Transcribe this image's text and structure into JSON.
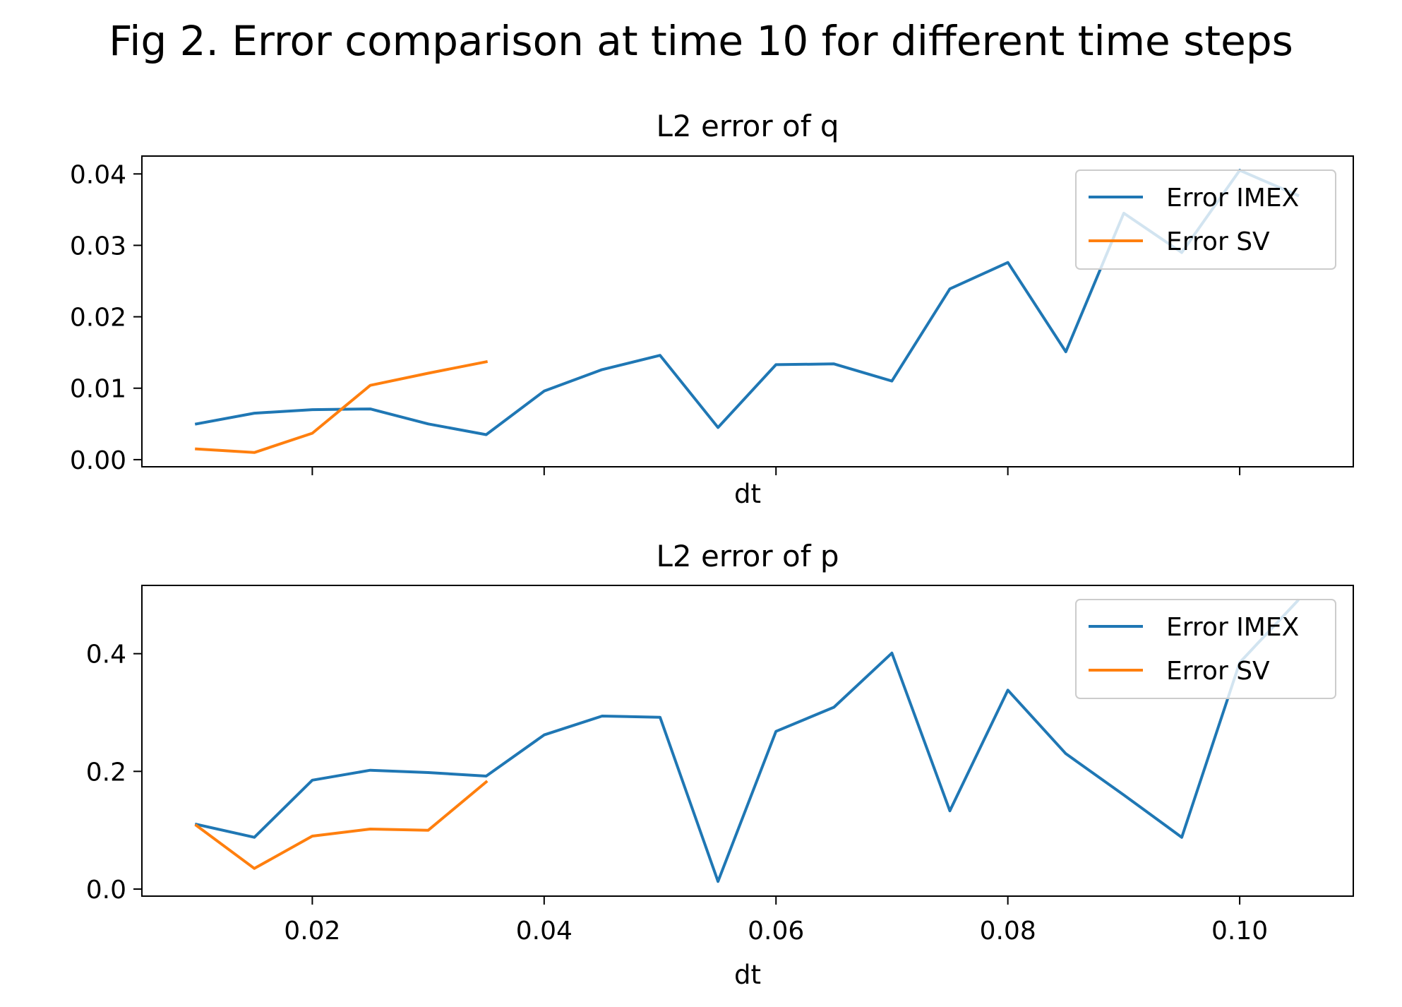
{
  "figure": {
    "title": "Fig 2. Error comparison at time 10 for different time steps"
  },
  "chart_data": [
    {
      "type": "line",
      "title": "L2 error of q",
      "xlabel": "dt",
      "ylabel": "",
      "xlim": [
        0.0053,
        0.1098
      ],
      "ylim": [
        -0.001,
        0.0425
      ],
      "xticks": [
        0.02,
        0.04,
        0.06,
        0.08,
        0.1
      ],
      "xtick_labels_visible": false,
      "yticks": [
        0.0,
        0.01,
        0.02,
        0.03,
        0.04
      ],
      "ytick_labels": [
        "0.00",
        "0.01",
        "0.02",
        "0.03",
        "0.04"
      ],
      "legend": {
        "position": "upper-right"
      },
      "series": [
        {
          "name": "Error IMEX",
          "color": "#1f77b4",
          "x": [
            0.01,
            0.015,
            0.02,
            0.025,
            0.03,
            0.035,
            0.04,
            0.045,
            0.05,
            0.055,
            0.06,
            0.065,
            0.07,
            0.075,
            0.08,
            0.085,
            0.09,
            0.095,
            0.1,
            0.105
          ],
          "y": [
            0.005,
            0.0065,
            0.007,
            0.0071,
            0.005,
            0.0035,
            0.0096,
            0.0126,
            0.0146,
            0.0045,
            0.0133,
            0.0134,
            0.011,
            0.0239,
            0.0276,
            0.0151,
            0.0345,
            0.029,
            0.0405,
            0.037
          ]
        },
        {
          "name": "Error SV",
          "color": "#ff7f0e",
          "x": [
            0.01,
            0.015,
            0.02,
            0.025,
            0.03,
            0.035
          ],
          "y": [
            0.0015,
            0.001,
            0.0037,
            0.0104,
            0.0121,
            0.0137
          ]
        }
      ]
    },
    {
      "type": "line",
      "title": "L2 error of p",
      "xlabel": "dt",
      "ylabel": "",
      "xlim": [
        0.0053,
        0.1098
      ],
      "ylim": [
        -0.012,
        0.516
      ],
      "xticks": [
        0.02,
        0.04,
        0.06,
        0.08,
        0.1
      ],
      "xtick_labels_visible": true,
      "xtick_labels": [
        "0.02",
        "0.04",
        "0.06",
        "0.08",
        "0.10"
      ],
      "yticks": [
        0.0,
        0.2,
        0.4
      ],
      "ytick_labels": [
        "0.0",
        "0.2",
        "0.4"
      ],
      "legend": {
        "position": "upper-right"
      },
      "series": [
        {
          "name": "Error IMEX",
          "color": "#1f77b4",
          "x": [
            0.01,
            0.015,
            0.02,
            0.025,
            0.03,
            0.035,
            0.04,
            0.045,
            0.05,
            0.055,
            0.06,
            0.065,
            0.07,
            0.075,
            0.08,
            0.085,
            0.09,
            0.095,
            0.1,
            0.105
          ],
          "y": [
            0.11,
            0.088,
            0.185,
            0.202,
            0.198,
            0.192,
            0.262,
            0.294,
            0.292,
            0.013,
            0.268,
            0.309,
            0.401,
            0.133,
            0.338,
            0.23,
            0.16,
            0.088,
            0.385,
            0.49
          ]
        },
        {
          "name": "Error SV",
          "color": "#ff7f0e",
          "x": [
            0.01,
            0.015,
            0.02,
            0.025,
            0.03,
            0.035
          ],
          "y": [
            0.108,
            0.035,
            0.09,
            0.102,
            0.1,
            0.182
          ]
        }
      ]
    }
  ]
}
